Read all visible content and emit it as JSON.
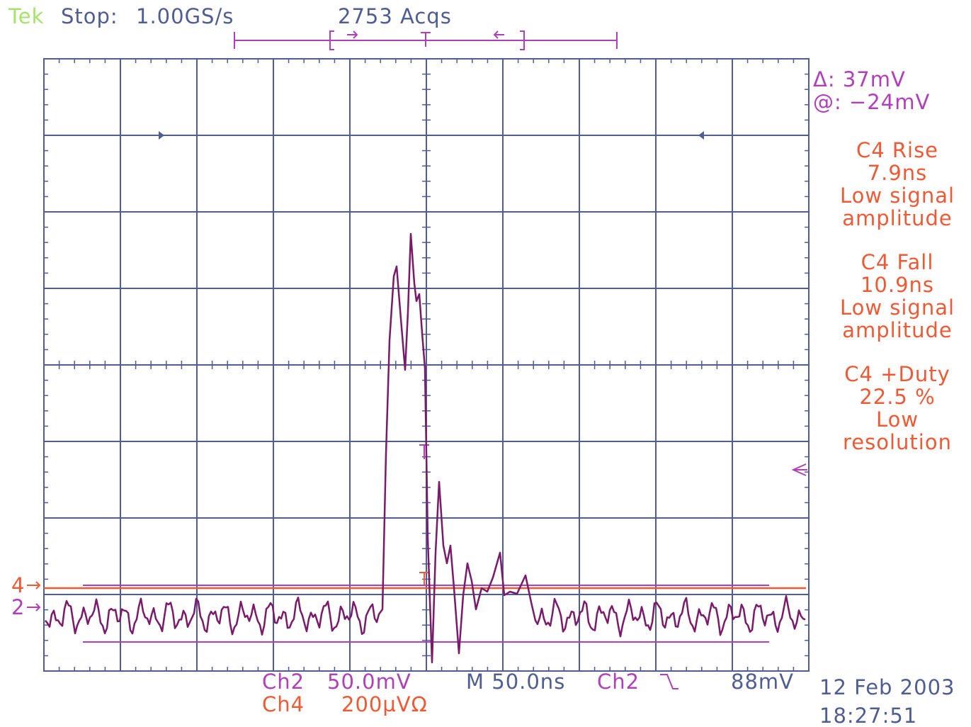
{
  "header": {
    "brand": "Tek",
    "state": "Stop:",
    "rate": "1.00GS/s",
    "acquisitions": "2753 Acqs"
  },
  "cursor": {
    "delta": "Δ: 37mV",
    "at": "@: −24mV"
  },
  "measurements": [
    {
      "lines": [
        "C4 Rise",
        "7.9ns",
        "Low signal",
        "amplitude"
      ]
    },
    {
      "lines": [
        "C4 Fall",
        "10.9ns",
        "Low signal",
        "amplitude"
      ]
    },
    {
      "lines": [
        "C4 +Duty",
        "22.5 %",
        "Low",
        "resolution"
      ]
    }
  ],
  "markers": {
    "ch4": "4",
    "ch2": "2"
  },
  "status": {
    "ch2": "Ch2",
    "ch2_scale": "50.0mV",
    "ch4": "Ch4",
    "ch4_scale": "200µVΩ",
    "timebase": "M 50.0ns",
    "trigger_source": "Ch2",
    "trigger_level": "88mV"
  },
  "date": "12 Feb 2003",
  "time": "18:27:51"
}
